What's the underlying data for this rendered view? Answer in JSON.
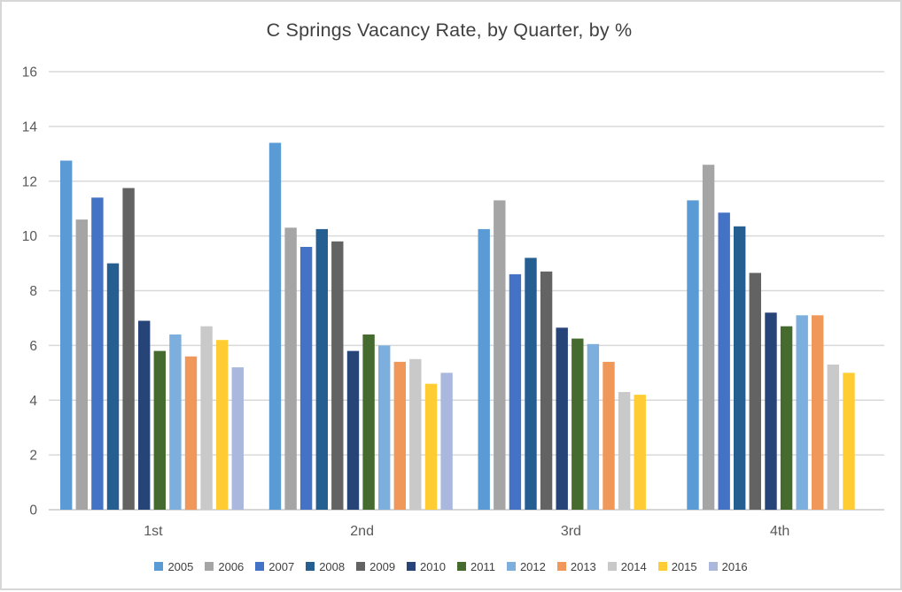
{
  "chart_data": {
    "type": "bar",
    "title": "C Springs Vacancy Rate, by Quarter, by %",
    "categories": [
      "1st",
      "2nd",
      "3rd",
      "4th"
    ],
    "series": [
      {
        "name": "2005",
        "color": "#5B9BD5",
        "values": [
          12.75,
          13.4,
          10.25,
          11.3
        ]
      },
      {
        "name": "2006",
        "color": "#A5A5A5",
        "values": [
          10.6,
          10.3,
          11.3,
          12.6
        ]
      },
      {
        "name": "2007",
        "color": "#4472C4",
        "values": [
          11.4,
          9.6,
          8.6,
          10.85
        ]
      },
      {
        "name": "2008",
        "color": "#255E91",
        "values": [
          9.0,
          10.25,
          9.2,
          10.35
        ]
      },
      {
        "name": "2009",
        "color": "#636363",
        "values": [
          11.75,
          9.8,
          8.7,
          8.65
        ]
      },
      {
        "name": "2010",
        "color": "#264478",
        "values": [
          6.9,
          5.8,
          6.65,
          7.2
        ]
      },
      {
        "name": "2011",
        "color": "#466B2F",
        "values": [
          5.8,
          6.4,
          6.25,
          6.7
        ]
      },
      {
        "name": "2012",
        "color": "#7CAFDD",
        "values": [
          6.4,
          6.0,
          6.05,
          7.1
        ]
      },
      {
        "name": "2013",
        "color": "#F0975A",
        "values": [
          5.6,
          5.4,
          5.4,
          7.1
        ]
      },
      {
        "name": "2014",
        "color": "#C9C9C9",
        "values": [
          6.7,
          5.5,
          4.3,
          5.3
        ]
      },
      {
        "name": "2015",
        "color": "#FFCD33",
        "values": [
          6.2,
          4.6,
          4.2,
          5.0
        ]
      },
      {
        "name": "2016",
        "color": "#A9B8DC",
        "values": [
          5.2,
          5.0,
          null,
          null
        ]
      }
    ],
    "ylim": [
      0,
      16
    ],
    "yticks": [
      0,
      2,
      4,
      6,
      8,
      10,
      12,
      14,
      16
    ],
    "xlabel": "",
    "ylabel": "",
    "grid": true,
    "legend_position": "bottom"
  },
  "style": {
    "title_color": "#404040",
    "axis_text_color": "#595959",
    "legend_text_color": "#404040",
    "gridline_color": "#D9D9D9",
    "axis_line_color": "#D6D6D6",
    "frame_border_color": "#D7D7D7",
    "background": "#FFFFFF"
  }
}
